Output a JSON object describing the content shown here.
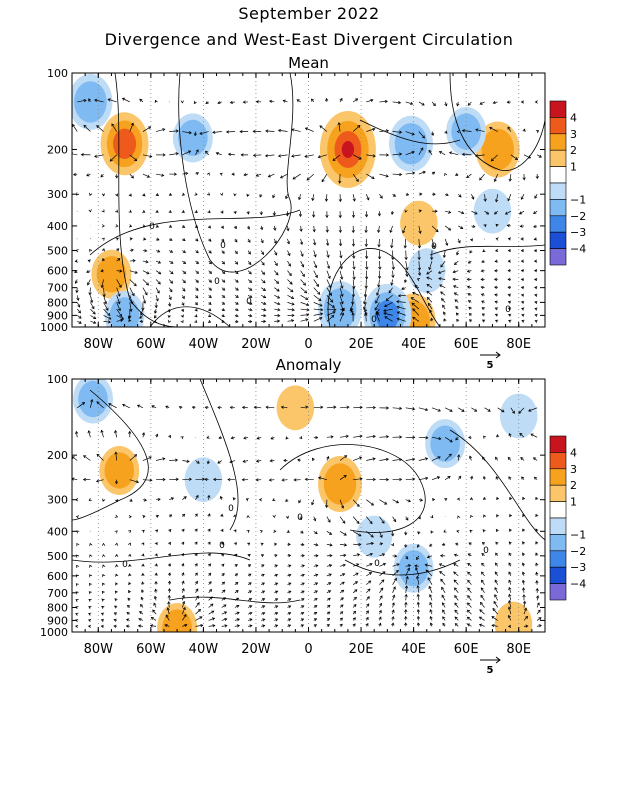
{
  "title": "September 2022",
  "subtitle": "Divergence and West-East Divergent Circulation",
  "colors": {
    "c4": "#c8141e",
    "c3": "#ee5a1c",
    "c2": "#f6a21e",
    "c1": "#fbc66a",
    "m1": "#bfdcf7",
    "m2": "#7fbaf2",
    "m3": "#3e86e8",
    "m4": "#1a4fd6",
    "m5": "#7a6ad8"
  },
  "chart_data": [
    {
      "type": "heatmap",
      "title": "Mean",
      "x_tick_labels": [
        "80W",
        "60W",
        "40W",
        "20W",
        "0",
        "20E",
        "40E",
        "60E",
        "80E"
      ],
      "x_tick_values": [
        -80,
        -60,
        -40,
        -20,
        0,
        20,
        40,
        60,
        80
      ],
      "xlim": [
        -90,
        90
      ],
      "y_tick_labels": [
        "100",
        "200",
        "300",
        "400",
        "500",
        "600",
        "700",
        "800",
        "900",
        "1000"
      ],
      "y_tick_values": [
        100,
        200,
        300,
        400,
        500,
        600,
        700,
        800,
        900,
        1000
      ],
      "ylim": [
        1000,
        100
      ],
      "colorbar_labels": [
        "4",
        "3",
        "2",
        "1",
        "−1",
        "−2",
        "−3",
        "−4"
      ],
      "contour_labels": [
        "0",
        "0",
        "0",
        "0",
        "0",
        "0",
        "0"
      ],
      "vector_reference": "5",
      "divergence_blobs": [
        {
          "lon": -70,
          "p": 190,
          "value": 2.5
        },
        {
          "lon": 15,
          "p": 200,
          "value": 3.5
        },
        {
          "lon": 72,
          "p": 200,
          "value": 2.0
        },
        {
          "lon": -44,
          "p": 180,
          "value": -1.5
        },
        {
          "lon": 39,
          "p": 190,
          "value": -2.0
        },
        {
          "lon": -83,
          "p": 130,
          "value": -2.0
        },
        {
          "lon": 60,
          "p": 170,
          "value": -1.5
        },
        {
          "lon": -75,
          "p": 620,
          "value": 1.5
        },
        {
          "lon": 40,
          "p": 950,
          "value": 2.0
        },
        {
          "lon": 30,
          "p": 900,
          "value": -2.5
        },
        {
          "lon": 12,
          "p": 850,
          "value": -2.0
        },
        {
          "lon": -70,
          "p": 900,
          "value": -1.5
        },
        {
          "lon": 45,
          "p": 600,
          "value": -1.2
        },
        {
          "lon": 70,
          "p": 350,
          "value": -1.2
        },
        {
          "lon": 42,
          "p": 390,
          "value": 1.2
        }
      ]
    },
    {
      "type": "heatmap",
      "title": "Anomaly",
      "x_tick_labels": [
        "80W",
        "60W",
        "40W",
        "20W",
        "0",
        "20E",
        "40E",
        "60E",
        "80E"
      ],
      "x_tick_values": [
        -80,
        -60,
        -40,
        -20,
        0,
        20,
        40,
        60,
        80
      ],
      "xlim": [
        -90,
        90
      ],
      "y_tick_labels": [
        "100",
        "200",
        "300",
        "400",
        "500",
        "600",
        "700",
        "800",
        "900",
        "1000"
      ],
      "y_tick_values": [
        100,
        200,
        300,
        400,
        500,
        600,
        700,
        800,
        900,
        1000
      ],
      "ylim": [
        1000,
        100
      ],
      "colorbar_labels": [
        "4",
        "3",
        "2",
        "1",
        "−1",
        "−2",
        "−3",
        "−4"
      ],
      "contour_labels": [
        "0",
        "0",
        "0",
        "0",
        "0",
        "0"
      ],
      "vector_reference": "5",
      "divergence_blobs": [
        {
          "lon": 12,
          "p": 260,
          "value": 2.0
        },
        {
          "lon": -5,
          "p": 130,
          "value": 1.2
        },
        {
          "lon": -72,
          "p": 230,
          "value": 1.5
        },
        {
          "lon": -82,
          "p": 120,
          "value": -1.5
        },
        {
          "lon": 52,
          "p": 180,
          "value": -1.5
        },
        {
          "lon": 80,
          "p": 140,
          "value": -1.2
        },
        {
          "lon": 40,
          "p": 560,
          "value": -1.5
        },
        {
          "lon": -50,
          "p": 960,
          "value": 1.5
        },
        {
          "lon": 78,
          "p": 930,
          "value": 1.2
        },
        {
          "lon": -40,
          "p": 250,
          "value": -1.2
        },
        {
          "lon": 25,
          "p": 420,
          "value": -1.0
        }
      ]
    }
  ]
}
